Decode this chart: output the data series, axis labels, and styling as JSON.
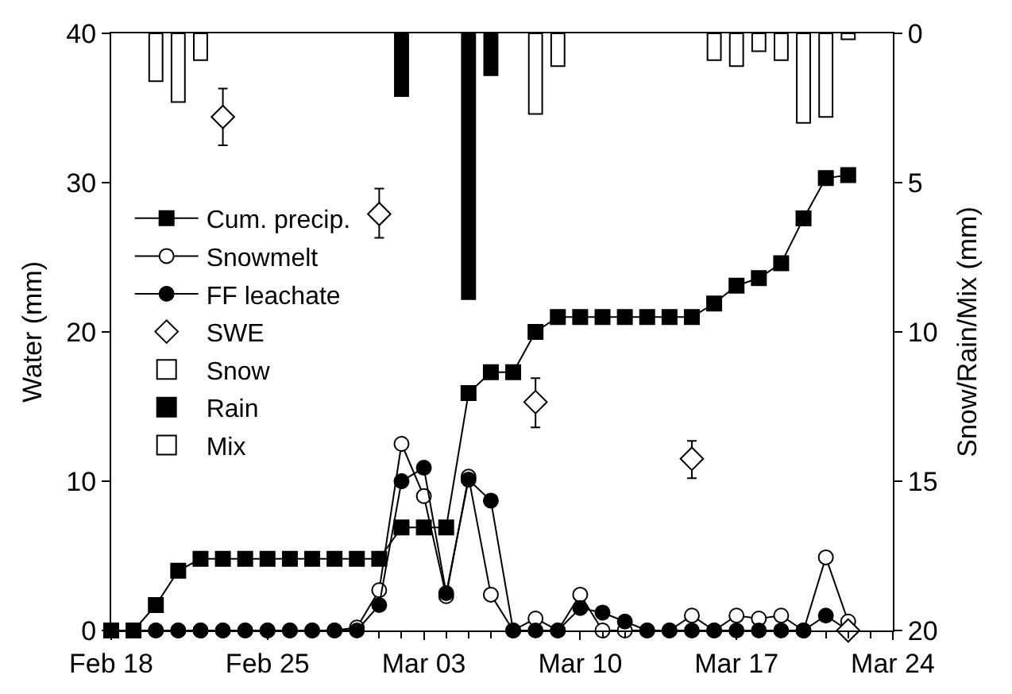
{
  "chart_data": {
    "type": "line",
    "ylabel": "Water (mm)",
    "y2label": "Snow/Rain/Mix (mm)",
    "x": [
      "--02-18",
      "--02-19",
      "--02-20",
      "--02-21",
      "--02-22",
      "--02-23",
      "--02-24",
      "--02-25",
      "--02-26",
      "--02-27",
      "--02-28",
      "--02-29",
      "--03-01",
      "--03-02",
      "--03-03",
      "--03-04",
      "--03-05",
      "--03-06",
      "--03-07",
      "--03-08",
      "--03-09",
      "--03-10",
      "--03-11",
      "--03-12",
      "--03-13",
      "--03-14",
      "--03-15",
      "--03-16",
      "--03-17",
      "--03-18",
      "--03-19",
      "--03-20",
      "--03-21",
      "--03-22"
    ],
    "series": [
      {
        "name": "Cum. precip.",
        "marker": "square",
        "color": "#000000",
        "values": [
          0,
          0,
          1.7,
          4.0,
          4.8,
          4.8,
          4.8,
          4.8,
          4.8,
          4.8,
          4.8,
          4.8,
          4.8,
          6.9,
          6.9,
          6.9,
          15.9,
          17.3,
          17.3,
          20.0,
          21.0,
          21.0,
          21.0,
          21.0,
          21.0,
          21.0,
          21.0,
          21.9,
          23.1,
          23.6,
          24.6,
          27.6,
          30.3,
          30.5
        ]
      },
      {
        "name": "Snowmelt",
        "marker": "circle",
        "color": "#ffffff",
        "values": [
          0,
          0,
          0,
          0,
          0,
          0,
          0,
          0,
          0,
          0,
          0,
          0.2,
          2.7,
          12.5,
          9.0,
          2.3,
          10.3,
          2.4,
          0,
          0.8,
          0,
          2.4,
          0,
          0,
          0,
          0,
          1.0,
          0,
          1.0,
          0.8,
          1.0,
          0,
          4.9,
          0.6
        ]
      },
      {
        "name": "FF leachate",
        "marker": "circle",
        "color": "#000000",
        "values": [
          0,
          0,
          0,
          0,
          0,
          0,
          0,
          0,
          0,
          0,
          0,
          0,
          1.7,
          10.0,
          10.9,
          2.5,
          10.1,
          8.7,
          0,
          0,
          0,
          1.5,
          1.2,
          0.6,
          0,
          0,
          0,
          0,
          0,
          0,
          0,
          0,
          1.0,
          0
        ]
      },
      {
        "name": "SWE",
        "type": "scatter",
        "marker": "diamond",
        "color": "#ffffff",
        "x": [
          "--02-23",
          "--03-01",
          "--03-08",
          "--03-15",
          "--03-22"
        ],
        "values": [
          34.4,
          27.9,
          15.3,
          11.5,
          0
        ],
        "errors": [
          [
            32.5,
            36.3
          ],
          [
            26.3,
            29.6
          ],
          [
            13.6,
            16.9
          ],
          [
            10.2,
            12.7
          ],
          null
        ]
      },
      {
        "name": "Snow",
        "type": "bar",
        "axis": "y2",
        "color": "#ffffff",
        "x": [
          "--02-20",
          "--02-21",
          "--02-22",
          "--03-16",
          "--03-17",
          "--03-18",
          "--03-19",
          "--03-20",
          "--03-21",
          "--03-22"
        ],
        "values": [
          1.6,
          2.3,
          0.9,
          0.9,
          1.1,
          0.6,
          0.9,
          3.0,
          2.8,
          0.2
        ]
      },
      {
        "name": "Rain",
        "type": "bar",
        "axis": "y2",
        "color": "#000000",
        "x": [
          "--03-02",
          "--03-05",
          "--03-06"
        ],
        "values": [
          2.1,
          8.9,
          1.4
        ]
      },
      {
        "name": "Mix",
        "type": "bar",
        "axis": "y2",
        "color": "#ffffff",
        "x": [
          "--03-08",
          "--03-09"
        ],
        "values": [
          2.7,
          1.1
        ]
      }
    ],
    "xlim": [
      "--02-18",
      "--03-24"
    ],
    "xticks": [
      {
        "value": "--02-18",
        "label": "Feb 18"
      },
      {
        "value": "--02-25",
        "label": "Feb 25"
      },
      {
        "value": "--03-03",
        "label": "Mar 03"
      },
      {
        "value": "--03-10",
        "label": "Mar 10"
      },
      {
        "value": "--03-17",
        "label": "Mar 17"
      },
      {
        "value": "--03-24",
        "label": "Mar 24"
      }
    ],
    "ylim": [
      0,
      40
    ],
    "yticks": [
      0,
      10,
      20,
      30,
      40
    ],
    "y2lim": [
      20,
      0
    ],
    "y2ticks": [
      0,
      5,
      10,
      15,
      20
    ],
    "grid": false,
    "legend": "left",
    "line_style": "solid"
  }
}
